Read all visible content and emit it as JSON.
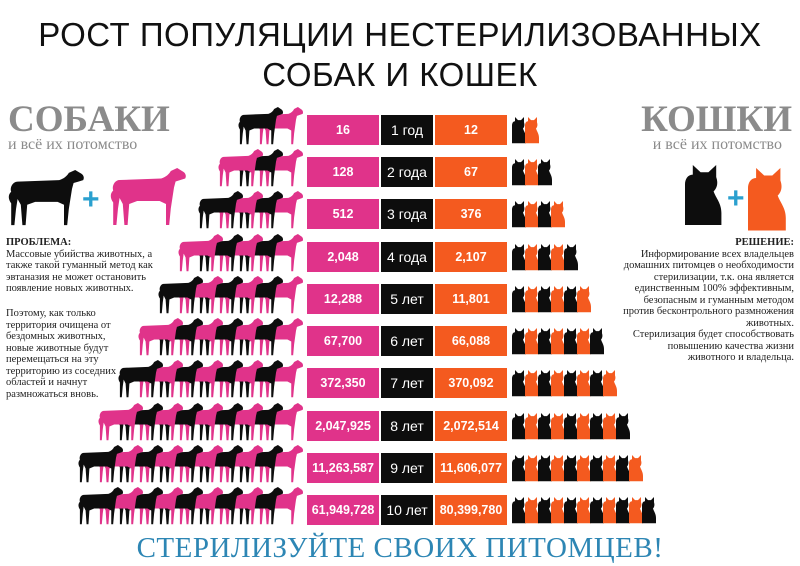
{
  "header": {
    "title_line1": "РОСТ ПОПУЛЯЦИИ НЕСТЕРИЛИЗОВАННЫХ",
    "title_line2": "СОБАК И КОШЕК"
  },
  "dogs_panel": {
    "heading": "СОБАКИ",
    "subheading": "и всё их потомство",
    "problem_label": "ПРОБЛЕМА:",
    "problem_text": "Массовые убийства животных, а также такой гуманный метод как эвтаназия не может остановить появление новых животных.",
    "problem_text2": "Поэтому, как только территория очищена от бездомных животных, новые животные будут перемещаться на эту территорию из соседних областей и начнут размножаться вновь.",
    "plus": "+"
  },
  "cats_panel": {
    "heading": "КОШКИ",
    "subheading": "и всё их потомство",
    "solution_label": "РЕШЕНИЕ:",
    "solution_text": "Информирование всех владельцев домашних питомцев о необходимости стерилизации, т.к. она является единственным 100% эффективным, безопасным и гуманным методом против бесконтрольного размножения животных.",
    "solution_text2": "Стерилизация будет способствовать повышению качества жизни животного и владельца.",
    "plus": "+"
  },
  "footer": {
    "slogan": "СТЕРИЛИЗУЙТЕ СВОИХ ПИТОМЦЕВ!"
  },
  "colors": {
    "dog": "#e0338a",
    "cat": "#f45a1f",
    "year": "#0d0d0d",
    "accent": "#2d86b4",
    "heading_gray": "#8b8b8b"
  },
  "chart_data": {
    "type": "table",
    "title": "РОСТ ПОПУЛЯЦИИ НЕСТЕРИЛИЗОВАННЫХ СОБАК И КОШЕК",
    "categories": [
      "1 год",
      "2 года",
      "3 года",
      "4 года",
      "5 лет",
      "6 лет",
      "7 лет",
      "8 лет",
      "9 лет",
      "10 лет"
    ],
    "series": [
      {
        "name": "СОБАКИ",
        "values": [
          16,
          128,
          512,
          2048,
          12288,
          67700,
          372350,
          2047925,
          11263587,
          61949728
        ],
        "labels": [
          "16",
          "128",
          "512",
          "2,048",
          "12,288",
          "67,700",
          "372,350",
          "2,047,925",
          "11,263,587",
          "61,949,728"
        ]
      },
      {
        "name": "КОШКИ",
        "values": [
          12,
          67,
          376,
          2107,
          11801,
          66088,
          370092,
          2072514,
          11606077,
          80399780
        ],
        "labels": [
          "12",
          "67",
          "376",
          "2,107",
          "11,801",
          "66,088",
          "370,092",
          "2,072,514",
          "11,606,077",
          "80,399,780"
        ]
      }
    ]
  }
}
